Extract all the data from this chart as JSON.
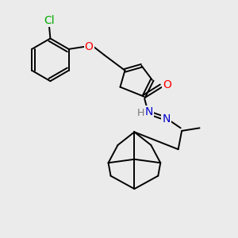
{
  "background_color": "#ebebeb",
  "bond_color": "#000000",
  "bond_width": 1.4,
  "atom_colors": {
    "Cl": "#00aa00",
    "O": "#ff0000",
    "N": "#0000cc",
    "H": "#777777",
    "C": "#000000"
  },
  "font_size": 8.5,
  "figsize": [
    3.0,
    3.0
  ],
  "dpi": 100
}
